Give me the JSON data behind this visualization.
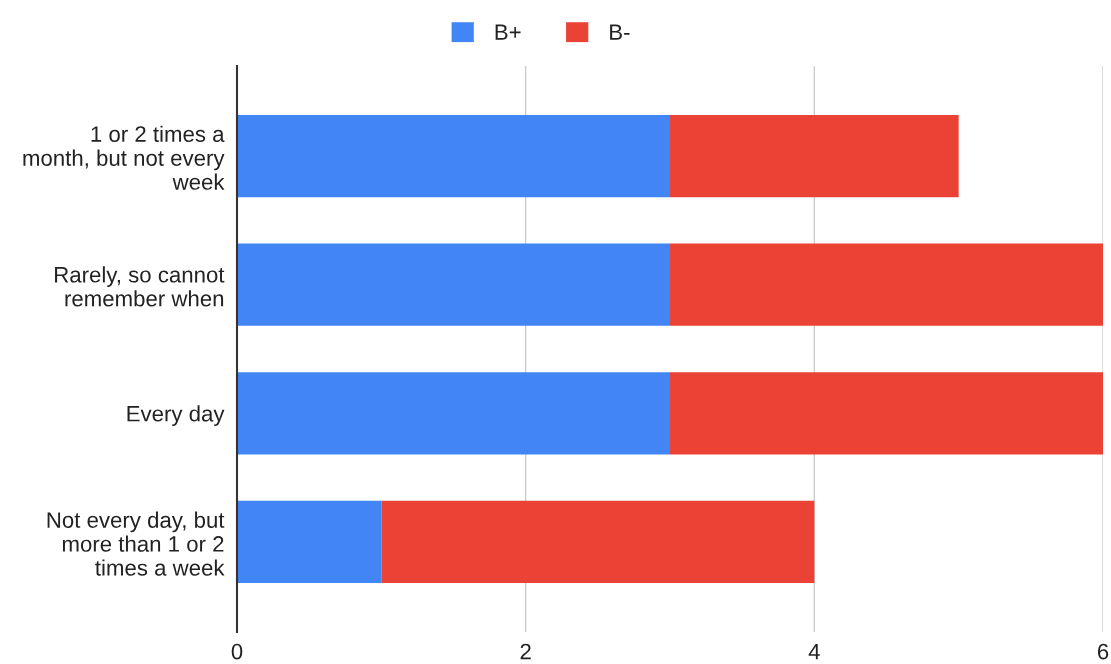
{
  "chart_data": {
    "type": "bar",
    "orientation": "horizontal",
    "stacked": true,
    "categories": [
      "1 or 2 times a\nmonth, but not every\nweek",
      "Rarely, so cannot\nremember when",
      "Every day",
      "Not every day, but\nmore than 1 or 2\ntimes a week"
    ],
    "series": [
      {
        "name": "B+",
        "color": "#4285f4",
        "values": [
          3,
          3,
          3,
          1
        ]
      },
      {
        "name": "B-",
        "color": "#ea4335",
        "values": [
          2,
          3,
          3,
          3
        ]
      }
    ],
    "xlim": [
      0,
      6
    ],
    "xticks": [
      0,
      2,
      4,
      6
    ],
    "grid": "x",
    "legend": "top"
  }
}
